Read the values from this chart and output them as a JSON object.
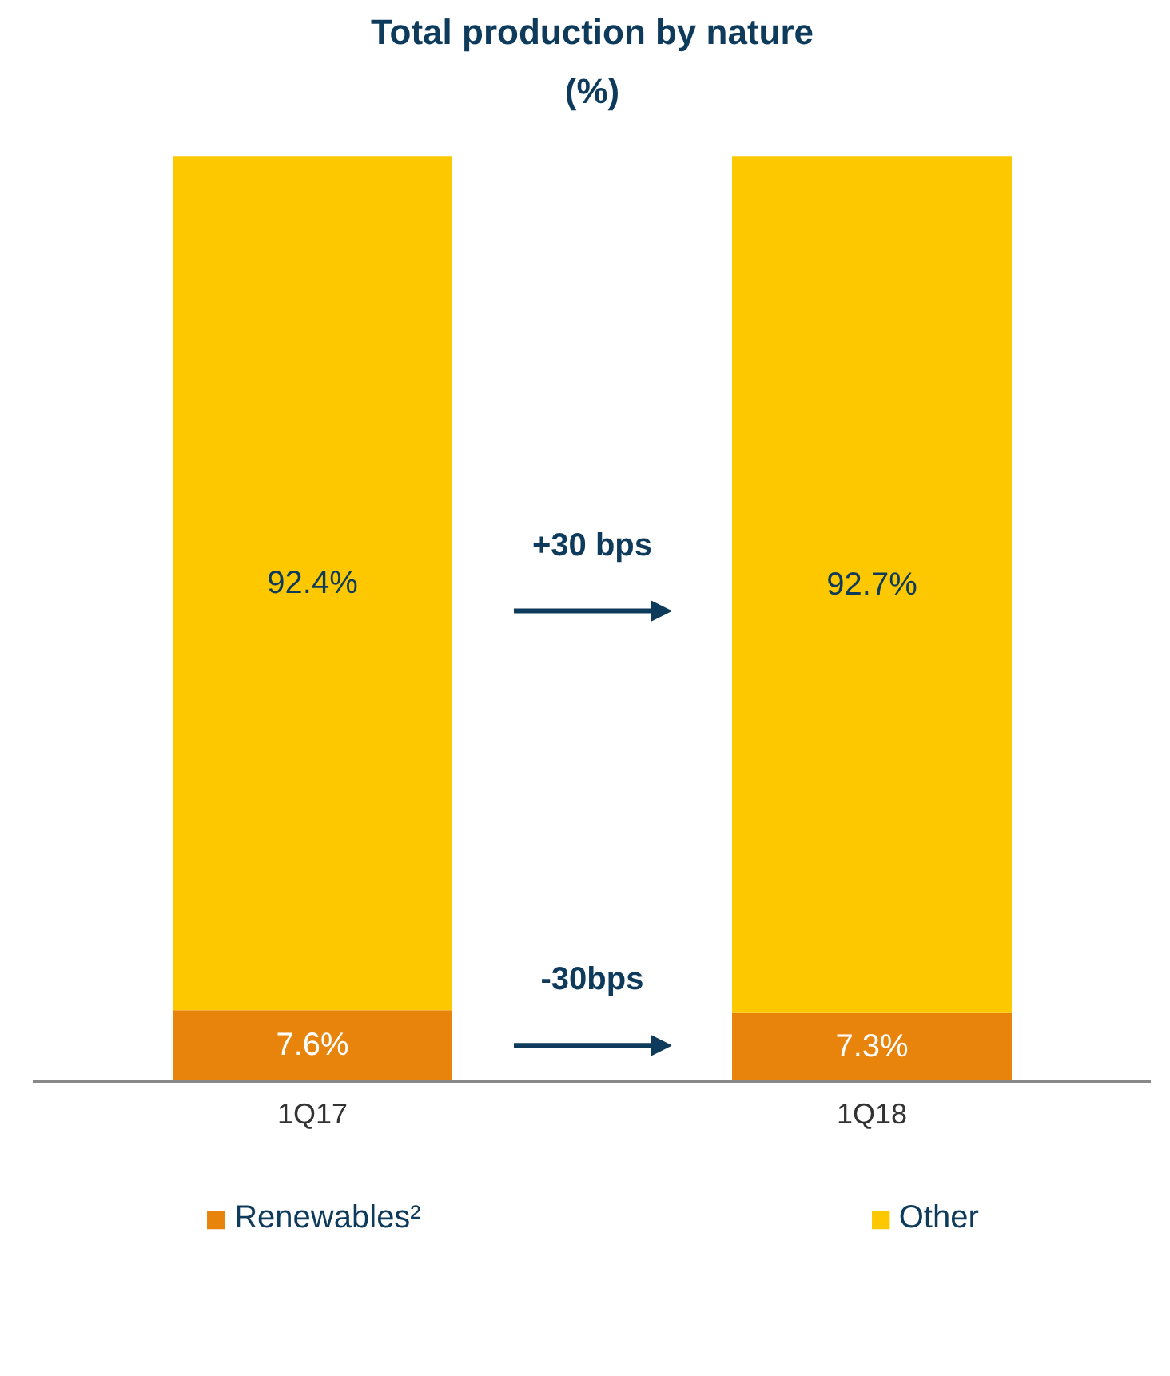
{
  "chart_data": {
    "type": "bar",
    "title": "Total production by nature",
    "subtitle": "(%)",
    "stacked": true,
    "categories": [
      "1Q17",
      "1Q18"
    ],
    "series": [
      {
        "name": "Renewables²",
        "color": "#e8830c",
        "values": [
          7.6,
          7.3
        ],
        "value_labels": [
          "7.6%",
          "7.3%"
        ]
      },
      {
        "name": "Other",
        "color": "#fdc800",
        "values": [
          92.4,
          92.7
        ],
        "value_labels": [
          "92.4%",
          "92.7%"
        ]
      }
    ],
    "tick_labels": "x",
    "grid": false,
    "legend": "bottom",
    "annotations": [
      "+30 bps",
      "-30bps"
    ]
  }
}
